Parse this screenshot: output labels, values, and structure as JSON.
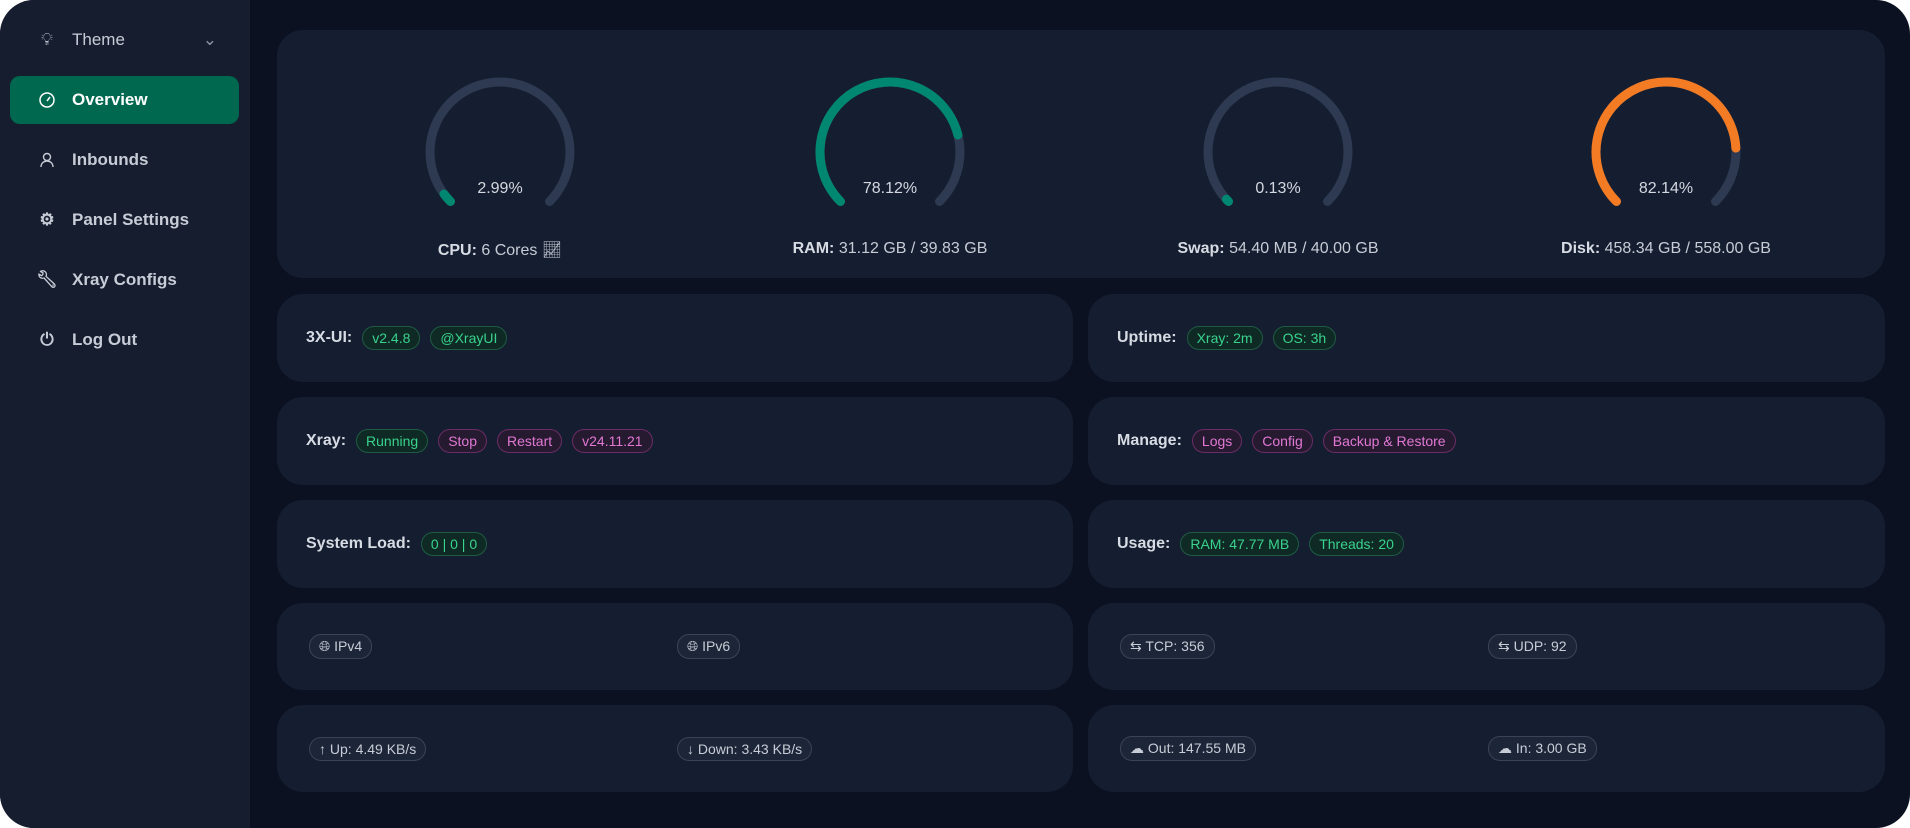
{
  "sidebar": {
    "items": [
      {
        "label": "Theme",
        "icon": "bulb-icon"
      },
      {
        "label": "Overview",
        "icon": "dashboard-icon",
        "active": true
      },
      {
        "label": "Inbounds",
        "icon": "user-icon"
      },
      {
        "label": "Panel Settings",
        "icon": "gear-icon"
      },
      {
        "label": "Xray Configs",
        "icon": "wrench-icon"
      },
      {
        "label": "Log Out",
        "icon": "logout-icon"
      }
    ]
  },
  "gauges": [
    {
      "value": "2.99%",
      "percent": 2.99,
      "label": "CPU:",
      "detail": "6 Cores",
      "color": "#008771"
    },
    {
      "value": "78.12%",
      "percent": 78.12,
      "label": "RAM:",
      "detail": "31.12 GB / 39.83 GB",
      "color": "#008771"
    },
    {
      "value": "0.13%",
      "percent": 0.13,
      "label": "Swap:",
      "detail": "54.40 MB / 40.00 GB",
      "color": "#008771"
    },
    {
      "value": "82.14%",
      "percent": 82.14,
      "label": "Disk:",
      "detail": "458.34 GB / 558.00 GB",
      "color": "#f37b24"
    }
  ],
  "xui": {
    "label": "3X-UI:",
    "version": "v2.4.8",
    "channel": "@XrayUI"
  },
  "uptime": {
    "label": "Uptime:",
    "xray": "Xray: 2m",
    "os": "OS: 3h"
  },
  "xray": {
    "label": "Xray:",
    "status": "Running",
    "stop": "Stop",
    "restart": "Restart",
    "version": "v24.11.21"
  },
  "manage": {
    "label": "Manage:",
    "logs": "Logs",
    "config": "Config",
    "backup": "Backup & Restore"
  },
  "load": {
    "label": "System Load:",
    "value": "0 | 0 | 0"
  },
  "usage": {
    "label": "Usage:",
    "ram": "RAM: 47.77 MB",
    "threads": "Threads: 20"
  },
  "ip": {
    "v4": "IPv4",
    "v6": "IPv6"
  },
  "conn": {
    "tcp": "TCP: 356",
    "udp": "UDP: 92"
  },
  "speed": {
    "up": "Up: 4.49 KB/s",
    "down": "Down: 3.43 KB/s"
  },
  "traffic": {
    "out": "Out: 147.55 MB",
    "in": "In: 3.00 GB"
  },
  "colors": {
    "accent": "#00684f",
    "track": "#2e3a52"
  }
}
